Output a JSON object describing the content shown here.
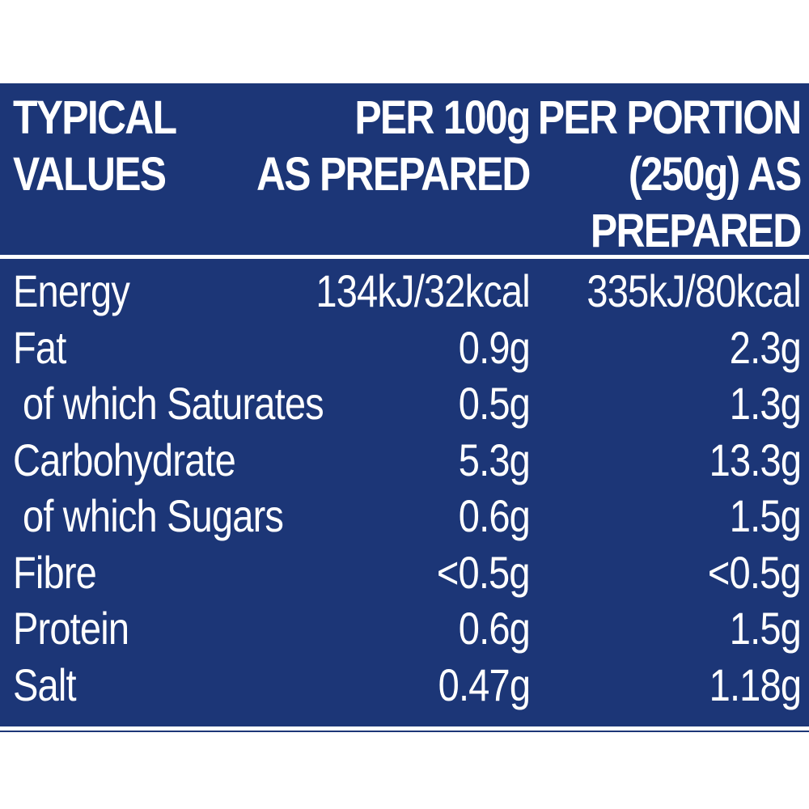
{
  "header": {
    "col_nutrient": [
      "TYPICAL",
      "VALUES"
    ],
    "col_per100": [
      "PER 100g",
      "AS PREPARED"
    ],
    "col_portion": [
      "PER PORTION",
      "(250g) AS",
      "PREPARED"
    ]
  },
  "rows": [
    {
      "name": "Energy",
      "per100": "134kJ/32kcal",
      "portion": "335kJ/80kcal"
    },
    {
      "name": "Fat",
      "per100": "0.9g",
      "portion": "2.3g"
    },
    {
      "name": "of which Saturates",
      "per100": "0.5g",
      "portion": "1.3g"
    },
    {
      "name": "Carbohydrate",
      "per100": "5.3g",
      "portion": "13.3g"
    },
    {
      "name": "of which Sugars",
      "per100": "0.6g",
      "portion": "1.5g"
    },
    {
      "name": "Fibre",
      "per100": "<0.5g",
      "portion": "<0.5g"
    },
    {
      "name": "Protein",
      "per100": "0.6g",
      "portion": "1.5g"
    },
    {
      "name": "Salt",
      "per100": "0.47g",
      "portion": "1.18g"
    }
  ],
  "colors": {
    "panel_background": "#1c3677",
    "text": "#ffffff",
    "page_background": "#ffffff"
  }
}
